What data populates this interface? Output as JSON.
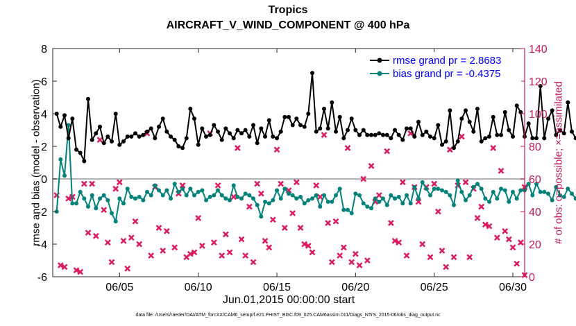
{
  "colors": {
    "rmse": "#000000",
    "bias": "#00827a",
    "obs": "#dc1a5f",
    "right_axis": "#c2185b",
    "zero_line": "#b3b3b3",
    "legend_text": "#0000ff"
  },
  "chart_data": {
    "type": "line",
    "title": "Tropics",
    "subtitle": "AIRCRAFT_V_WIND_COMPONENT @ 400 hPa",
    "xlabel": "Jun.01,2015 00:00:00 start",
    "ylabel_left": "rmse and bias (model - observation)",
    "ylabel_right": "# of obs: o=possible; ×=assimilated",
    "ylim_left": [
      -6,
      8
    ],
    "ylim_right": [
      0,
      140
    ],
    "xlim": [
      0.75,
      30.75
    ],
    "left_ticks": [
      "-6",
      "-4",
      "-2",
      "0",
      "2",
      "4",
      "6",
      "8"
    ],
    "right_ticks": [
      "0",
      "20",
      "40",
      "60",
      "80",
      "100",
      "120",
      "140"
    ],
    "x_ticks": [
      {
        "x": 5,
        "label": "06/05"
      },
      {
        "x": 10,
        "label": "06/10"
      },
      {
        "x": 15,
        "label": "06/15"
      },
      {
        "x": 20,
        "label": "06/20"
      },
      {
        "x": 25,
        "label": "06/25"
      },
      {
        "x": 30,
        "label": "06/30"
      }
    ],
    "legend": [
      "rmse grand pr = 2.8683",
      "bias grand pr = -0.4375"
    ],
    "legend_position": "top-right",
    "footnote": "data file: /Users/raeder/DAI/ATM_forcXX/CAM6_setup/f.e21.FHIST_BGC.f09_025.CAM6assim.011/Diags_NTrS_2015-06/obs_diag_output.nc",
    "x_start": 1.0,
    "x_step": 0.25,
    "series": [
      {
        "name": "rmse",
        "axis": "left",
        "values": [
          4.0,
          3.2,
          3.9,
          2.5,
          3.7,
          1.8,
          1.6,
          1.1,
          4.9,
          2.4,
          2.8,
          3.2,
          2.2,
          2.6,
          2.3,
          4.0,
          2.1,
          2.3,
          2.6,
          2.6,
          2.8,
          2.6,
          2.7,
          2.9,
          3.1,
          2.5,
          3.2,
          3.7,
          2.9,
          2.6,
          2.4,
          2.0,
          1.9,
          2.5,
          4.3,
          3.7,
          2.1,
          3.1,
          2.6,
          2.7,
          3.3,
          2.9,
          2.4,
          3.1,
          2.8,
          2.5,
          3.0,
          2.8,
          3.0,
          2.6,
          3.3,
          2.2,
          3.1,
          2.6,
          3.6,
          2.6,
          2.5,
          2.9,
          3.8,
          3.8,
          3.3,
          3.7,
          3.3,
          3.2,
          4.0,
          6.5,
          2.9,
          3.1,
          4.3,
          3.1,
          4.7,
          2.9,
          3.8,
          2.5,
          3.0,
          3.7,
          3.0,
          2.7,
          3.0,
          2.7,
          2.7,
          2.7,
          2.8,
          2.7,
          2.7,
          2.5,
          3.0,
          2.7,
          2.4,
          3.1,
          3.1,
          2.6,
          3.5,
          2.7,
          2.9,
          2.6,
          2.5,
          3.3,
          2.1,
          2.3,
          4.2,
          1.9,
          2.3,
          3.7,
          4.2,
          3.5,
          2.9,
          4.3,
          2.3,
          2.5,
          2.6,
          3.8,
          2.7,
          2.7,
          4.1,
          3.0,
          2.6,
          4.5,
          4.1,
          2.6,
          3.4,
          2.5,
          2.5,
          5.7,
          2.5,
          3.7,
          4.2,
          2.7,
          3.0,
          2.8,
          4.7,
          2.9,
          2.5,
          2.4,
          2.5,
          3.0,
          3.1,
          2.8,
          2.6,
          2.4,
          3.2,
          2.3,
          2.9,
          3.4,
          2.4,
          4.5,
          3.0,
          2.6,
          2.6,
          2.6,
          3.0,
          3.2,
          2.7,
          2.5,
          3.0,
          2.9,
          2.8,
          2.9,
          3.0,
          2.7,
          3.1,
          2.8,
          3.0,
          2.9,
          2.6,
          3.0,
          3.2,
          2.9,
          3.1,
          2.7,
          4.3,
          2.9,
          2.5,
          2.9,
          3.1,
          2.9,
          4.1,
          2.3,
          2.6,
          3.1,
          4.2
        ]
      },
      {
        "name": "bias",
        "axis": "left",
        "values": [
          -2.0,
          1.2,
          0.2,
          3.3,
          -1.5,
          -1.5,
          -0.8,
          -1.2,
          -1.7,
          -1.0,
          -1.8,
          -1.2,
          -1.0,
          -1.3,
          -2.1,
          -2.6,
          -1.2,
          -1.5,
          -0.6,
          -1.1,
          -1.2,
          -1.1,
          -1.3,
          -0.8,
          -1.0,
          -0.4,
          -0.7,
          -1.0,
          -0.7,
          -1.2,
          -0.3,
          -0.8,
          -0.6,
          -1.0,
          -0.6,
          -1.0,
          -0.8,
          -0.7,
          -1.3,
          -1.1,
          -1.0,
          -0.7,
          -1.0,
          -1.2,
          -1.3,
          -0.4,
          -1.1,
          -1.2,
          -0.9,
          -1.0,
          -1.2,
          -1.6,
          -2.3,
          -1.4,
          -1.5,
          -1.3,
          -0.7,
          -1.2,
          -0.6,
          -0.9,
          -1.0,
          -1.2,
          -1.1,
          -1.5,
          -1.3,
          -1.2,
          -1.0,
          -1.7,
          -1.0,
          -1.4,
          -1.4,
          -1.0,
          -0.6,
          -1.9,
          -1.9,
          -2.1,
          -0.9,
          -1.0,
          -1.5,
          -1.7,
          -1.8,
          -1.2,
          -1.4,
          -1.2,
          -1.6,
          -1.0,
          -1.2,
          -1.1,
          -1.5,
          -1.0,
          -1.5,
          -0.5,
          -1.2,
          -0.2,
          -0.6,
          -1.0,
          -0.6,
          -0.6,
          -0.7,
          -0.8,
          -1.0,
          -1.6,
          -0.1,
          -0.8,
          -1.3,
          -1.0,
          -0.5,
          -0.3,
          -0.6,
          -1.2,
          -1.4,
          -0.8,
          -1.2,
          -0.6,
          -0.7,
          -1.4,
          -0.8,
          -1.2,
          -0.7,
          -0.7,
          -0.3,
          -1.0,
          -0.3,
          -0.8,
          -0.8,
          -0.9,
          -1.3,
          -0.5,
          -1.0,
          -1.1,
          -0.6,
          -0.9,
          -1.2,
          -1.0,
          -0.6,
          -0.9,
          -0.7,
          -1.1,
          -0.7,
          -0.9,
          -1.2,
          -1.0,
          -1.6,
          -1.0,
          -1.1,
          -0.9,
          -1.3,
          -0.9,
          -0.5,
          -1.5,
          -1.0,
          -1.2,
          -0.8,
          -0.9,
          -0.7,
          -1.2,
          -0.9,
          -1.0,
          -0.6,
          -0.4,
          -0.7,
          -0.8,
          -0.9,
          -1.0,
          -1.0,
          -0.3,
          -0.6,
          -0.8,
          -0.7,
          -0.4,
          -0.9,
          -0.5,
          -0.6,
          -1.0,
          -0.8,
          -0.2,
          -0.6,
          -0.9,
          -1.7,
          -2.1,
          -2.0
        ]
      }
    ],
    "obs_assimilated": [
      [
        1.0,
        50
      ],
      [
        1.25,
        7
      ],
      [
        1.5,
        6
      ],
      [
        1.75,
        48
      ],
      [
        2.0,
        49
      ],
      [
        2.25,
        4
      ],
      [
        2.5,
        3
      ],
      [
        2.75,
        57
      ],
      [
        3.0,
        27
      ],
      [
        3.25,
        57
      ],
      [
        3.5,
        25
      ],
      [
        3.75,
        84
      ],
      [
        4.0,
        41
      ],
      [
        4.25,
        21
      ],
      [
        4.5,
        9
      ],
      [
        4.75,
        54
      ],
      [
        5.0,
        58
      ],
      [
        5.25,
        22
      ],
      [
        5.5,
        5
      ],
      [
        5.75,
        24
      ],
      [
        6.0,
        34
      ],
      [
        6.25,
        20
      ],
      [
        6.75,
        88
      ],
      [
        7.0,
        13
      ],
      [
        7.25,
        55
      ],
      [
        7.5,
        30
      ],
      [
        7.75,
        16
      ],
      [
        8.0,
        28
      ],
      [
        8.5,
        18
      ],
      [
        8.75,
        51
      ],
      [
        9.0,
        56
      ],
      [
        9.25,
        12
      ],
      [
        9.5,
        14
      ],
      [
        9.75,
        15
      ],
      [
        10.0,
        36
      ],
      [
        10.25,
        19
      ],
      [
        10.75,
        88
      ],
      [
        11.0,
        21
      ],
      [
        11.25,
        56
      ],
      [
        11.5,
        13
      ],
      [
        11.75,
        26
      ],
      [
        12.0,
        15
      ],
      [
        12.25,
        49
      ],
      [
        12.5,
        79
      ],
      [
        12.75,
        23
      ],
      [
        13.0,
        13
      ],
      [
        13.25,
        43
      ],
      [
        13.5,
        9
      ],
      [
        13.75,
        57
      ],
      [
        14.0,
        51
      ],
      [
        14.25,
        22
      ],
      [
        14.5,
        18
      ],
      [
        14.75,
        35
      ],
      [
        15.0,
        78
      ],
      [
        15.25,
        57
      ],
      [
        15.5,
        30
      ],
      [
        15.75,
        53
      ],
      [
        16.0,
        39
      ],
      [
        16.25,
        58
      ],
      [
        16.5,
        30
      ],
      [
        16.75,
        20
      ],
      [
        17.0,
        19
      ],
      [
        17.25,
        15
      ],
      [
        17.5,
        56
      ],
      [
        17.75,
        49
      ],
      [
        18.0,
        87
      ],
      [
        18.25,
        33
      ],
      [
        18.5,
        9
      ],
      [
        18.75,
        34
      ],
      [
        19.0,
        13
      ],
      [
        19.25,
        18
      ],
      [
        19.5,
        79
      ],
      [
        19.75,
        9
      ],
      [
        20.0,
        14
      ],
      [
        20.25,
        7
      ],
      [
        20.5,
        60
      ],
      [
        20.75,
        10
      ],
      [
        21.0,
        68
      ],
      [
        21.25,
        46
      ],
      [
        21.5,
        50
      ],
      [
        22.0,
        77
      ],
      [
        22.25,
        33
      ],
      [
        22.5,
        22
      ],
      [
        22.75,
        21
      ],
      [
        23.0,
        58
      ],
      [
        23.25,
        13
      ],
      [
        23.5,
        88
      ],
      [
        23.75,
        55
      ],
      [
        24.0,
        46
      ],
      [
        24.25,
        20
      ],
      [
        24.5,
        55
      ],
      [
        24.75,
        12
      ],
      [
        25.0,
        57
      ],
      [
        25.25,
        40
      ],
      [
        25.5,
        16
      ],
      [
        25.75,
        6
      ],
      [
        26.0,
        78
      ],
      [
        26.25,
        12
      ],
      [
        26.5,
        56
      ],
      [
        26.75,
        86
      ],
      [
        27.0,
        58
      ],
      [
        27.25,
        12
      ],
      [
        27.5,
        54
      ],
      [
        27.75,
        36
      ],
      [
        28.0,
        43
      ],
      [
        28.25,
        32
      ],
      [
        28.5,
        31
      ],
      [
        28.75,
        79
      ],
      [
        29.0,
        24
      ],
      [
        29.25,
        65
      ],
      [
        29.5,
        28
      ],
      [
        29.75,
        23
      ],
      [
        30.0,
        18
      ],
      [
        30.25,
        8
      ],
      [
        30.5,
        21
      ],
      [
        30.75,
        55
      ],
      [
        30.75,
        1
      ]
    ]
  }
}
